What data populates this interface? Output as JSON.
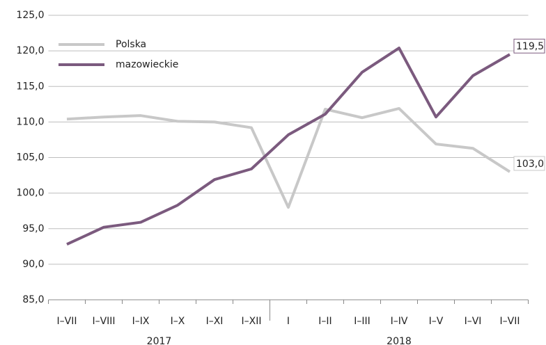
{
  "chart_data": {
    "type": "line",
    "categories": [
      "I–VII",
      "I–VIII",
      "I–IX",
      "I–X",
      "I–XI",
      "I–XII",
      "I",
      "I–II",
      "I–III",
      "I–IV",
      "I–V",
      "I–VI",
      "I–VII"
    ],
    "years": [
      "2017",
      "2017",
      "2017",
      "2017",
      "2017",
      "2017",
      "2018",
      "2018",
      "2018",
      "2018",
      "2018",
      "2018",
      "2018"
    ],
    "series": [
      {
        "name": "Polska",
        "color": "#c8c8c8",
        "values": [
          110.4,
          110.7,
          110.9,
          110.1,
          110.0,
          109.2,
          98.0,
          111.8,
          110.6,
          111.9,
          106.9,
          106.3,
          103.0
        ],
        "value_labels": [
          null,
          null,
          null,
          null,
          null,
          null,
          null,
          null,
          null,
          null,
          null,
          null,
          "103,0"
        ]
      },
      {
        "name": "mazowieckie",
        "color": "#7b5a7e",
        "values": [
          92.8,
          95.2,
          95.9,
          98.3,
          101.9,
          103.4,
          108.2,
          111.1,
          117.0,
          120.4,
          110.7,
          116.5,
          119.5
        ],
        "value_labels": [
          null,
          null,
          null,
          null,
          null,
          null,
          null,
          null,
          null,
          null,
          null,
          null,
          "119,5"
        ]
      }
    ],
    "ylim": [
      85,
      125
    ],
    "yticks": [
      {
        "value": 85,
        "label": "85,0"
      },
      {
        "value": 90,
        "label": "90,0"
      },
      {
        "value": 95,
        "label": "95,0"
      },
      {
        "value": 100,
        "label": "100,0"
      },
      {
        "value": 105,
        "label": "105,0"
      },
      {
        "value": 110,
        "label": "110,0"
      },
      {
        "value": 115,
        "label": "115,0"
      },
      {
        "value": 120,
        "label": "120,0"
      },
      {
        "value": 125,
        "label": "125,0"
      }
    ],
    "grid": true,
    "legend": "top-left"
  }
}
